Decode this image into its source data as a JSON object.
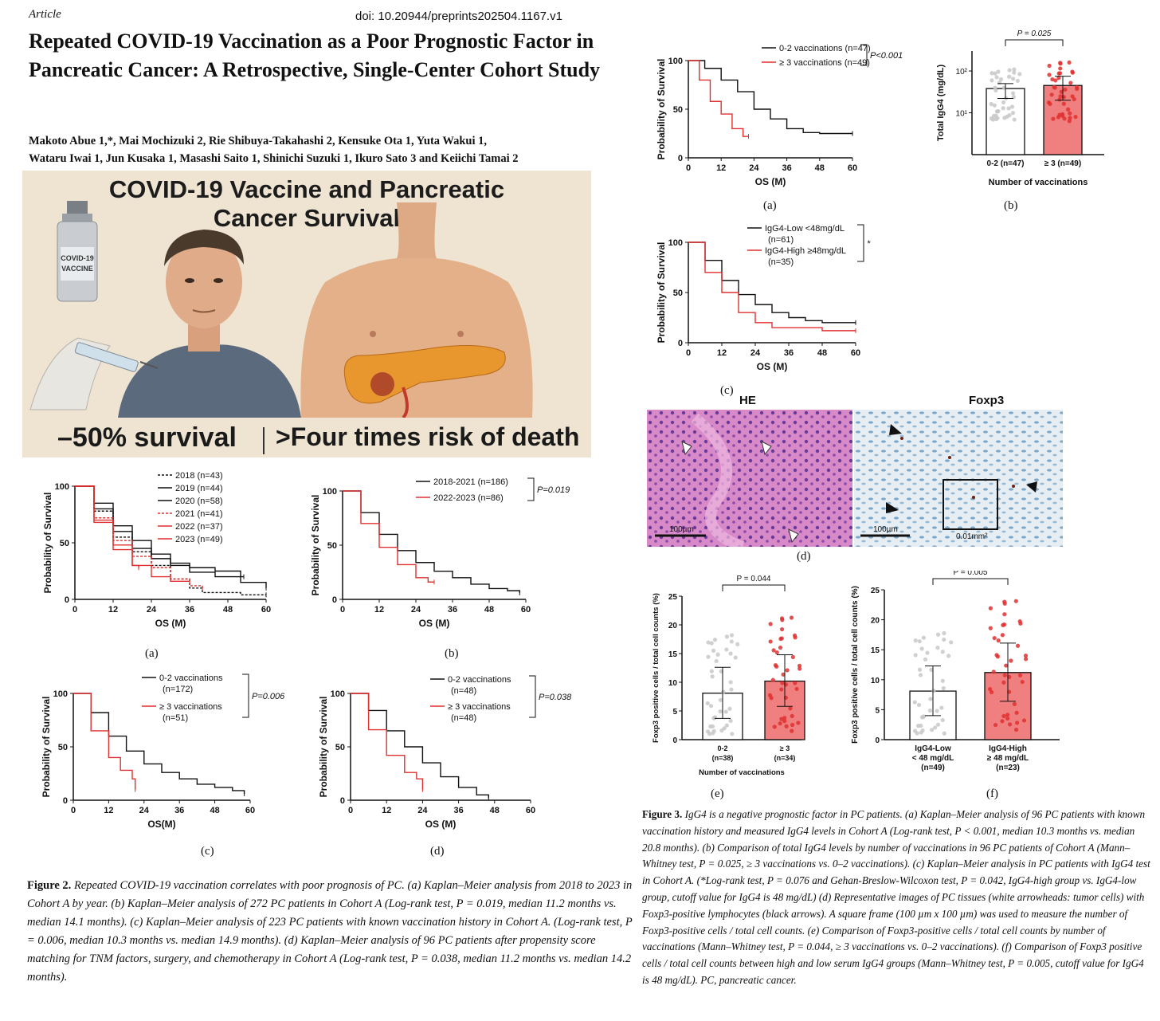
{
  "header": {
    "article_label": "Article",
    "doi": "doi: 10.20944/preprints202504.1167.v1"
  },
  "title": "Repeated COVID-19 Vaccination as a Poor Prognostic Factor in Pancreatic Cancer: A Retrospective, Single-Center Cohort Study",
  "authors": {
    "line1": "Makoto Abue 1,*, Mai Mochizuki 2, Rie Shibuya-Takahashi 2, Kensuke Ota 1, Yuta Wakui 1,",
    "line2": "Wataru Iwai 1, Jun Kusaka 1, Masashi Saito 1, Shinichi Suzuki 1, Ikuro Sato 3 and Keiichi Tamai 2"
  },
  "banner": {
    "title_line1": "COVID-19 Vaccine and Pancreatic",
    "title_line2": "Cancer Survival",
    "vial_label_1": "COVID-19",
    "vial_label_2": "VACCINE",
    "footer_left": "–50% survival",
    "footer_right": ">Four times risk of death"
  },
  "figure2": {
    "panel_labels": [
      "(a)",
      "(b)",
      "(c)",
      "(d)"
    ],
    "caption": "Figure 2. Repeated COVID-19 vaccination correlates with poor prognosis of PC. (a) Kaplan–Meier analysis from 2018 to 2023 in Cohort A by year. (b) Kaplan–Meier analysis of 272 PC patients in Cohort A (Log-rank test, P = 0.019, median 11.2 months vs. median 14.1 months). (c) Kaplan–Meier analysis of 223 PC patients with known vaccination history in Cohort A. (Log-rank test, P = 0.006, median 10.3 months vs. median 14.9 months). (d) Kaplan–Meier analysis of 96 PC patients after propensity score matching for TNM factors, surgery, and chemotherapy in Cohort A (Log-rank test, P = 0.038, median 11.2 months vs. median 14.2 months).",
    "caption_lead": "Figure 2.",
    "caption_body": " Repeated COVID-19 vaccination correlates with poor prognosis of PC. (a) Kaplan–Meier analysis from 2018 to 2023 in Cohort A by year. (b) Kaplan–Meier analysis of 272 PC patients in Cohort A (Log-rank test, P = 0.019, median 11.2 months vs. median 14.1 months). (c) Kaplan–Meier analysis of 223 PC patients with known vaccination history in Cohort A. (Log-rank test, P = 0.006, median 10.3 months vs. median 14.9 months). (d) Kaplan–Meier analysis of 96 PC patients after propensity score matching for TNM factors, surgery, and chemotherapy in Cohort A (Log-rank test, P = 0.038, median 11.2 months vs. median 14.2 months)."
  },
  "figure3": {
    "panel_labels": [
      "(a)",
      "(b)",
      "(c)",
      "(d)",
      "(e)",
      "(f)"
    ],
    "micro_he": "HE",
    "micro_foxp3": "Foxp3",
    "scale_bar_1": "100µm",
    "scale_bar_2": "100µm",
    "frame_label": "0.01mm²",
    "caption_lead": "Figure 3.",
    "caption_body": " IgG4 is a negative prognostic factor in PC patients. (a) Kaplan–Meier analysis of 96 PC patients with known vaccination history and measured IgG4 levels in Cohort A (Log-rank test, P < 0.001, median 10.3 months vs. median 20.8 months). (b) Comparison of total IgG4 levels by number of vaccinations in 96 PC patients of Cohort A (Mann–Whitney test, P = 0.025, ≥ 3 vaccinations vs. 0–2 vaccinations). (c) Kaplan–Meier analysis in PC patients with IgG4 test in Cohort A. (*Log-rank test, P = 0.076 and Gehan-Breslow-Wilcoxon test, P = 0.042, IgG4-high group vs. IgG4-low group, cutoff value for IgG4 is 48 mg/dL) (d) Representative images of PC tissues (white arrowheads: tumor cells) with Foxp3-positive lymphocytes (black arrows). A square frame (100 µm x 100 µm) was used to measure the number of Foxp3-positive cells / total cell counts. (e) Comparison of Foxp3-positive cells / total cell counts by number of vaccinations (Mann–Whitney test, P = 0.044, ≥ 3 vaccinations vs. 0–2 vaccinations). (f) Comparison of Foxp3 positive cells / total cell counts between high and low serum IgG4 groups (Mann–Whitney test, P = 0.005, cutoff value for IgG4 is 48 mg/dL). PC, pancreatic cancer."
  },
  "colors": {
    "black_series": "#111111",
    "red_series": "#e03030",
    "bar_red": "#f08080",
    "banner_bg": "#efe4d2"
  },
  "chart_data": [
    {
      "id": "fig2a",
      "type": "line",
      "xlabel": "OS (M)",
      "ylabel": "Probability of Survival",
      "xticks": [
        0,
        12,
        24,
        36,
        48,
        60
      ],
      "yticks": [
        0,
        50,
        100
      ],
      "xlim": [
        0,
        60
      ],
      "ylim": [
        0,
        100
      ],
      "series": [
        {
          "name": "2018 (n=43)",
          "color": "#111111",
          "dash": true,
          "points": [
            [
              0,
              100
            ],
            [
              6,
              78
            ],
            [
              12,
              55
            ],
            [
              18,
              42
            ],
            [
              24,
              30
            ],
            [
              30,
              18
            ],
            [
              36,
              10
            ],
            [
              40,
              6
            ],
            [
              52,
              4
            ],
            [
              60,
              4
            ]
          ]
        },
        {
          "name": "2019 (n=44)",
          "color": "#111111",
          "dash": false,
          "points": [
            [
              0,
              100
            ],
            [
              6,
              80
            ],
            [
              12,
              60
            ],
            [
              18,
              45
            ],
            [
              24,
              36
            ],
            [
              30,
              30
            ],
            [
              36,
              24
            ],
            [
              44,
              20
            ],
            [
              53,
              20
            ]
          ]
        },
        {
          "name": "2020 (n=58)",
          "color": "#111111",
          "dash": false,
          "points": [
            [
              0,
              100
            ],
            [
              6,
              85
            ],
            [
              12,
              65
            ],
            [
              18,
              52
            ],
            [
              24,
              40
            ],
            [
              30,
              32
            ],
            [
              36,
              28
            ],
            [
              44,
              25
            ],
            [
              52,
              15
            ],
            [
              60,
              10
            ]
          ]
        },
        {
          "name": "2021 (n=41)",
          "color": "#e03030",
          "dash": true,
          "points": [
            [
              0,
              100
            ],
            [
              6,
              72
            ],
            [
              12,
              52
            ],
            [
              18,
              38
            ],
            [
              24,
              28
            ],
            [
              30,
              18
            ],
            [
              36,
              12
            ],
            [
              40,
              10
            ]
          ]
        },
        {
          "name": "2022 (n=37)",
          "color": "#e03030",
          "dash": false,
          "points": [
            [
              0,
              100
            ],
            [
              6,
              70
            ],
            [
              12,
              48
            ],
            [
              18,
              30
            ],
            [
              24,
              20
            ],
            [
              30,
              16
            ],
            [
              36,
              16
            ]
          ]
        },
        {
          "name": "2023 (n=49)",
          "color": "#e03030",
          "dash": false,
          "points": [
            [
              0,
              100
            ],
            [
              6,
              68
            ],
            [
              12,
              44
            ],
            [
              18,
              30
            ],
            [
              20,
              28
            ]
          ]
        }
      ]
    },
    {
      "id": "fig2b",
      "type": "line",
      "xlabel": "OS (M)",
      "ylabel": "Probability of Survival",
      "xticks": [
        0,
        12,
        24,
        36,
        48,
        60
      ],
      "yticks": [
        0,
        50,
        100
      ],
      "xlim": [
        0,
        60
      ],
      "ylim": [
        0,
        100
      ],
      "annotation": "P=0.019",
      "series": [
        {
          "name": "2018-2021 (n=186)",
          "color": "#111111",
          "points": [
            [
              0,
              100
            ],
            [
              6,
              80
            ],
            [
              12,
              60
            ],
            [
              18,
              45
            ],
            [
              24,
              34
            ],
            [
              30,
              26
            ],
            [
              36,
              20
            ],
            [
              42,
              14
            ],
            [
              48,
              10
            ],
            [
              54,
              8
            ],
            [
              58,
              6
            ]
          ]
        },
        {
          "name": "2022-2023 (n=86)",
          "color": "#e03030",
          "points": [
            [
              0,
              100
            ],
            [
              6,
              70
            ],
            [
              12,
              48
            ],
            [
              18,
              32
            ],
            [
              24,
              20
            ],
            [
              28,
              16
            ],
            [
              30,
              16
            ]
          ]
        }
      ]
    },
    {
      "id": "fig2c",
      "type": "line",
      "xlabel": "OS(M)",
      "ylabel": "Probability of Survival",
      "xticks": [
        0,
        12,
        24,
        36,
        48,
        60
      ],
      "yticks": [
        0,
        50,
        100
      ],
      "xlim": [
        0,
        60
      ],
      "ylim": [
        0,
        100
      ],
      "annotation": "P=0.006",
      "series": [
        {
          "name": "0-2 vaccinations (n=172)",
          "color": "#111111",
          "points": [
            [
              0,
              100
            ],
            [
              6,
              82
            ],
            [
              12,
              60
            ],
            [
              18,
              46
            ],
            [
              24,
              34
            ],
            [
              30,
              26
            ],
            [
              36,
              20
            ],
            [
              42,
              15
            ],
            [
              48,
              12
            ],
            [
              54,
              9
            ],
            [
              58,
              6
            ]
          ]
        },
        {
          "name": "≥ 3 vaccinations (n=51)",
          "color": "#e03030",
          "points": [
            [
              0,
              100
            ],
            [
              6,
              65
            ],
            [
              12,
              40
            ],
            [
              16,
              28
            ],
            [
              20,
              20
            ],
            [
              21,
              10
            ]
          ]
        }
      ]
    },
    {
      "id": "fig2d",
      "type": "line",
      "xlabel": "OS (M)",
      "ylabel": "Probability of Survival",
      "xticks": [
        0,
        12,
        24,
        36,
        48,
        60
      ],
      "yticks": [
        0,
        50,
        100
      ],
      "xlim": [
        0,
        60
      ],
      "ylim": [
        0,
        100
      ],
      "annotation": "P=0.038",
      "series": [
        {
          "name": "0-2 vaccinations (n=48)",
          "color": "#111111",
          "points": [
            [
              0,
              100
            ],
            [
              6,
              84
            ],
            [
              12,
              65
            ],
            [
              18,
              50
            ],
            [
              24,
              35
            ],
            [
              30,
              22
            ],
            [
              36,
              12
            ],
            [
              42,
              5
            ],
            [
              46,
              2
            ]
          ]
        },
        {
          "name": "≥ 3 vaccinations (n=48)",
          "color": "#e03030",
          "points": [
            [
              0,
              100
            ],
            [
              6,
              66
            ],
            [
              12,
              42
            ],
            [
              18,
              26
            ],
            [
              22,
              20
            ],
            [
              24,
              10
            ]
          ]
        }
      ]
    },
    {
      "id": "fig3a",
      "type": "line",
      "xlabel": "OS (M)",
      "ylabel": "Probability of Survival",
      "xticks": [
        0,
        12,
        24,
        36,
        48,
        60
      ],
      "yticks": [
        0,
        50,
        100
      ],
      "xlim": [
        0,
        60
      ],
      "ylim": [
        0,
        100
      ],
      "annotation": "P<0.001",
      "series": [
        {
          "name": "0-2 vaccinations (n=47)",
          "color": "#111111",
          "points": [
            [
              0,
              100
            ],
            [
              6,
              92
            ],
            [
              12,
              80
            ],
            [
              18,
              68
            ],
            [
              24,
              50
            ],
            [
              30,
              40
            ],
            [
              36,
              30
            ],
            [
              42,
              26
            ],
            [
              48,
              25
            ],
            [
              60,
              25
            ]
          ]
        },
        {
          "name": "≥ 3 vaccinations (n=49)",
          "color": "#e03030",
          "points": [
            [
              0,
              100
            ],
            [
              4,
              80
            ],
            [
              8,
              58
            ],
            [
              12,
              45
            ],
            [
              16,
              30
            ],
            [
              20,
              22
            ],
            [
              22,
              22
            ]
          ]
        }
      ]
    },
    {
      "id": "fig3b",
      "type": "bar",
      "ylabel": "Total IgG4 (mg/dL)",
      "xlabel": "Number of vaccinations",
      "yscale": "log",
      "ylim": [
        1,
        300
      ],
      "yticks_labels": [
        "10¹",
        "10²"
      ],
      "categories": [
        "0-2 (n=47)",
        "≥ 3 (n=49)"
      ],
      "values": [
        38,
        45
      ],
      "error": [
        [
          22,
          50
        ],
        [
          20,
          75
        ]
      ],
      "annotation": "P = 0.025"
    },
    {
      "id": "fig3c",
      "type": "line",
      "xlabel": "OS (M)",
      "ylabel": "Probability of Survival",
      "xticks": [
        0,
        12,
        24,
        36,
        48,
        60
      ],
      "yticks": [
        0,
        50,
        100
      ],
      "xlim": [
        0,
        60
      ],
      "ylim": [
        0,
        100
      ],
      "annotation": "*",
      "series": [
        {
          "name": "IgG4-Low <48mg/dL (n=61)",
          "color": "#111111",
          "points": [
            [
              0,
              100
            ],
            [
              6,
              82
            ],
            [
              12,
              62
            ],
            [
              18,
              48
            ],
            [
              24,
              38
            ],
            [
              30,
              30
            ],
            [
              36,
              25
            ],
            [
              42,
              22
            ],
            [
              48,
              20
            ],
            [
              60,
              20
            ]
          ]
        },
        {
          "name": "IgG4-High ≥48mg/dL (n=35)",
          "color": "#e03030",
          "points": [
            [
              0,
              100
            ],
            [
              6,
              70
            ],
            [
              12,
              50
            ],
            [
              18,
              30
            ],
            [
              24,
              20
            ],
            [
              30,
              15
            ],
            [
              36,
              15
            ],
            [
              48,
              12
            ],
            [
              60,
              12
            ]
          ]
        }
      ]
    },
    {
      "id": "fig3e",
      "type": "bar",
      "ylabel": "Foxp3 positive cells / total cell counts (%)",
      "xlabel": "Number of vaccinations",
      "ylim": [
        0,
        25
      ],
      "yticks": [
        0,
        5,
        10,
        15,
        20,
        25
      ],
      "categories": [
        "0-2 (n=38)",
        "≥ 3 (n=34)"
      ],
      "values": [
        8.1,
        10.2
      ],
      "error": [
        [
          3.7,
          12.6
        ],
        [
          5.8,
          14.8
        ]
      ],
      "annotation": "P = 0.044"
    },
    {
      "id": "fig3f",
      "type": "bar",
      "ylabel": "Foxp3 positive cells / total cell counts (%)",
      "xlabel": "",
      "ylim": [
        0,
        25
      ],
      "yticks": [
        0,
        5,
        10,
        15,
        20,
        25
      ],
      "categories": [
        "IgG4-Low < 48 mg/dL (n=49)",
        "IgG4-High ≥ 48 mg/dL (n=23)"
      ],
      "values": [
        8.1,
        11.2
      ],
      "error": [
        [
          4.0,
          12.3
        ],
        [
          6.4,
          16.1
        ]
      ],
      "annotation": "P = 0.005"
    }
  ]
}
